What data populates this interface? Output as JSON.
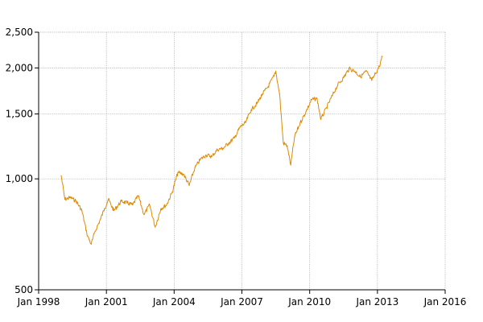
{
  "chart_data": {
    "type": "line",
    "title": "",
    "xlabel": "",
    "ylabel": "",
    "y_scale": "log",
    "ylim": [
      500,
      2500
    ],
    "xlim": [
      "1998-01-01",
      "2016-01-01"
    ],
    "grid": true,
    "legend": "none",
    "colors": {
      "series": "#e08a00",
      "grid": "#a8a8a8",
      "axis": "#000000"
    },
    "y_ticks": [
      {
        "value": 500,
        "label": "500"
      },
      {
        "value": 1000,
        "label": "1,000"
      },
      {
        "value": 1500,
        "label": "1,500"
      },
      {
        "value": 2000,
        "label": "2,000"
      },
      {
        "value": 2500,
        "label": "2,500"
      }
    ],
    "x_ticks": [
      {
        "value": "1998-01-01",
        "label": "Jan 1998"
      },
      {
        "value": "2001-01-01",
        "label": "Jan 2001"
      },
      {
        "value": "2004-01-01",
        "label": "Jan 2004"
      },
      {
        "value": "2007-01-01",
        "label": "Jan 2007"
      },
      {
        "value": "2010-01-01",
        "label": "Jan 2010"
      },
      {
        "value": "2013-01-01",
        "label": "Jan 2013"
      },
      {
        "value": "2016-01-01",
        "label": "Jan 2016"
      }
    ],
    "series": [
      {
        "points": [
          [
            "1999-01-01",
            1020
          ],
          [
            "1999-03-01",
            880
          ],
          [
            "1999-06-01",
            890
          ],
          [
            "1999-09-01",
            870
          ],
          [
            "1999-12-01",
            820
          ],
          [
            "2000-03-01",
            700
          ],
          [
            "2000-05-01",
            665
          ],
          [
            "2000-07-01",
            720
          ],
          [
            "2000-10-01",
            780
          ],
          [
            "2000-12-01",
            830
          ],
          [
            "2001-02-01",
            880
          ],
          [
            "2001-05-01",
            820
          ],
          [
            "2001-09-01",
            870
          ],
          [
            "2001-12-01",
            860
          ],
          [
            "2002-03-01",
            850
          ],
          [
            "2002-06-01",
            900
          ],
          [
            "2002-09-01",
            800
          ],
          [
            "2002-12-01",
            850
          ],
          [
            "2003-03-01",
            740
          ],
          [
            "2003-06-01",
            830
          ],
          [
            "2003-09-01",
            850
          ],
          [
            "2003-12-01",
            920
          ],
          [
            "2004-03-01",
            1040
          ],
          [
            "2004-06-01",
            1030
          ],
          [
            "2004-09-01",
            960
          ],
          [
            "2004-12-01",
            1070
          ],
          [
            "2005-03-01",
            1130
          ],
          [
            "2005-06-01",
            1160
          ],
          [
            "2005-09-01",
            1150
          ],
          [
            "2005-12-01",
            1200
          ],
          [
            "2006-03-01",
            1210
          ],
          [
            "2006-06-01",
            1250
          ],
          [
            "2006-09-01",
            1290
          ],
          [
            "2006-12-01",
            1380
          ],
          [
            "2007-03-01",
            1420
          ],
          [
            "2007-06-01",
            1540
          ],
          [
            "2007-09-01",
            1600
          ],
          [
            "2007-12-01",
            1700
          ],
          [
            "2008-03-01",
            1780
          ],
          [
            "2008-06-01",
            1900
          ],
          [
            "2008-07-01",
            1960
          ],
          [
            "2008-09-01",
            1700
          ],
          [
            "2008-11-01",
            1250
          ],
          [
            "2009-01-01",
            1230
          ],
          [
            "2009-03-01",
            1090
          ],
          [
            "2009-05-01",
            1300
          ],
          [
            "2009-08-01",
            1420
          ],
          [
            "2009-11-01",
            1520
          ],
          [
            "2010-02-01",
            1640
          ],
          [
            "2010-05-01",
            1650
          ],
          [
            "2010-07-01",
            1450
          ],
          [
            "2010-10-01",
            1560
          ],
          [
            "2011-01-01",
            1680
          ],
          [
            "2011-04-01",
            1800
          ],
          [
            "2011-07-01",
            1880
          ],
          [
            "2011-10-01",
            1990
          ],
          [
            "2012-01-01",
            1960
          ],
          [
            "2012-04-01",
            1890
          ],
          [
            "2012-07-01",
            1960
          ],
          [
            "2012-10-01",
            1850
          ],
          [
            "2012-12-01",
            1930
          ],
          [
            "2013-02-01",
            2020
          ],
          [
            "2013-03-20",
            2150
          ]
        ]
      }
    ]
  }
}
